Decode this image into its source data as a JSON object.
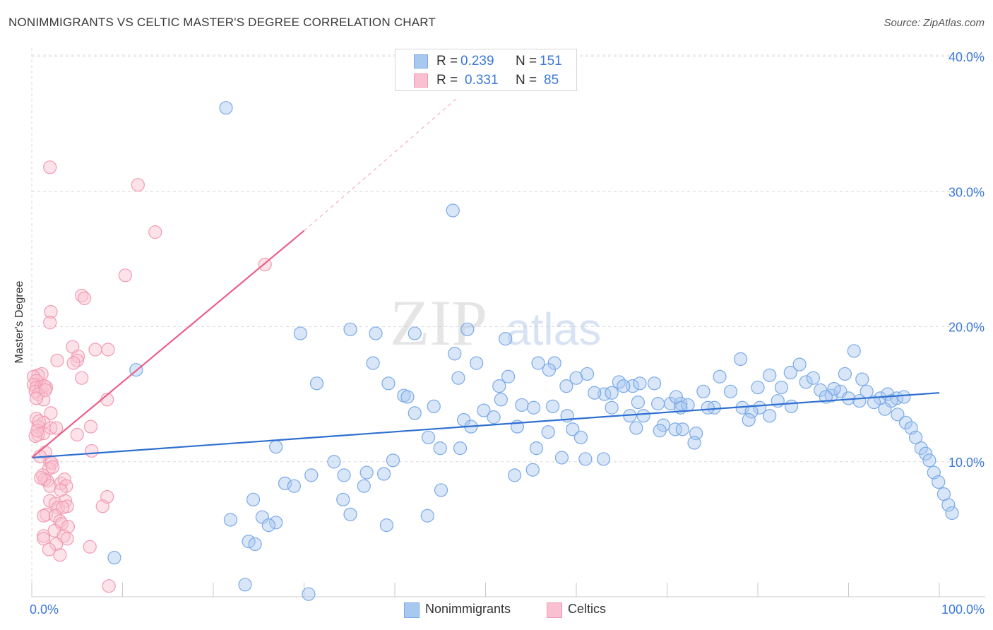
{
  "title": "NONIMMIGRANTS VS CELTIC MASTER'S DEGREE CORRELATION CHART",
  "source": "Source: ZipAtlas.com",
  "watermark": {
    "zip": "ZIP",
    "atlas": "atlas"
  },
  "colors": {
    "blue": "#7aaae8",
    "blue_fill": "#a8c8f0",
    "blue_line": "#2f6fd0",
    "pink": "#f29ab3",
    "pink_fill": "#f8c0d0",
    "pink_line": "#e8608a",
    "axis_text": "#3c78d8",
    "grid": "#dcdcdc"
  },
  "legend": {
    "rows": [
      {
        "r_label": "R =",
        "r_value": "0.239",
        "n_label": "N =",
        "n_value": "151"
      },
      {
        "r_label": "R =",
        "r_value": "0.331",
        "n_label": "N =",
        "n_value": "85"
      }
    ],
    "series": [
      "Nonimmigrants",
      "Celtics"
    ]
  },
  "chart_data": {
    "type": "scatter",
    "title": "NONIMMIGRANTS VS CELTIC MASTER'S DEGREE CORRELATION CHART",
    "xlabel": "",
    "ylabel": "Master's Degree",
    "xlim": [
      0,
      100
    ],
    "ylim": [
      0,
      40
    ],
    "x_tick_labels": [
      "0.0%",
      "100.0%"
    ],
    "y_ticks": [
      10,
      20,
      30,
      40
    ],
    "y_tick_labels": [
      "10.0%",
      "20.0%",
      "30.0%",
      "40.0%"
    ],
    "grid": true,
    "series": [
      {
        "name": "Nonimmigrants",
        "R": 0.239,
        "N": 151,
        "trend": {
          "x": [
            0,
            100
          ],
          "y": [
            10.3,
            15.1
          ],
          "dashed_extension": false
        },
        "points": [
          [
            21.4,
            36.2
          ],
          [
            46.4,
            28.6
          ],
          [
            11.5,
            16.8
          ],
          [
            29.6,
            19.5
          ],
          [
            35.1,
            19.8
          ],
          [
            37.9,
            19.5
          ],
          [
            42.2,
            19.5
          ],
          [
            48.0,
            19.8
          ],
          [
            52.2,
            19.1
          ],
          [
            46.6,
            18.0
          ],
          [
            37.6,
            17.3
          ],
          [
            49.0,
            17.3
          ],
          [
            55.8,
            17.3
          ],
          [
            57.6,
            17.3
          ],
          [
            31.4,
            15.8
          ],
          [
            39.3,
            15.8
          ],
          [
            47.0,
            16.2
          ],
          [
            51.5,
            15.6
          ],
          [
            60.0,
            16.2
          ],
          [
            63.1,
            15.0
          ],
          [
            63.9,
            15.1
          ],
          [
            64.7,
            15.9
          ],
          [
            66.2,
            15.6
          ],
          [
            67.0,
            15.8
          ],
          [
            70.4,
            14.3
          ],
          [
            71.5,
            14.3
          ],
          [
            72.3,
            14.2
          ],
          [
            75.2,
            14.0
          ],
          [
            80.2,
            14.0
          ],
          [
            83.7,
            14.1
          ],
          [
            41.0,
            14.9
          ],
          [
            41.4,
            14.8
          ],
          [
            44.3,
            14.1
          ],
          [
            51.7,
            14.6
          ],
          [
            54.0,
            14.2
          ],
          [
            57.4,
            14.1
          ],
          [
            55.3,
            14.0
          ],
          [
            63.9,
            14.0
          ],
          [
            66.8,
            14.4
          ],
          [
            69.0,
            14.3
          ],
          [
            71.5,
            14.0
          ],
          [
            74.5,
            14.0
          ],
          [
            78.3,
            14.0
          ],
          [
            79.3,
            13.7
          ],
          [
            42.2,
            13.6
          ],
          [
            47.6,
            13.1
          ],
          [
            49.8,
            13.8
          ],
          [
            50.9,
            13.3
          ],
          [
            53.5,
            12.6
          ],
          [
            59.0,
            13.4
          ],
          [
            65.9,
            13.4
          ],
          [
            67.4,
            13.4
          ],
          [
            69.6,
            12.7
          ],
          [
            70.9,
            12.4
          ],
          [
            71.7,
            12.4
          ],
          [
            73.2,
            12.1
          ],
          [
            79.0,
            13.1
          ],
          [
            81.3,
            13.4
          ],
          [
            43.7,
            11.8
          ],
          [
            48.4,
            12.6
          ],
          [
            56.9,
            12.2
          ],
          [
            59.6,
            12.4
          ],
          [
            60.5,
            11.8
          ],
          [
            66.6,
            12.5
          ],
          [
            69.2,
            12.3
          ],
          [
            73.0,
            11.4
          ],
          [
            26.9,
            11.1
          ],
          [
            33.3,
            10.0
          ],
          [
            39.8,
            10.1
          ],
          [
            45.0,
            11.0
          ],
          [
            47.2,
            11.0
          ],
          [
            55.6,
            11.0
          ],
          [
            58.4,
            10.3
          ],
          [
            61.0,
            10.2
          ],
          [
            63.0,
            10.2
          ],
          [
            27.9,
            8.4
          ],
          [
            30.8,
            9.0
          ],
          [
            34.4,
            9.0
          ],
          [
            36.9,
            9.2
          ],
          [
            38.8,
            9.1
          ],
          [
            53.2,
            9.0
          ],
          [
            55.2,
            9.4
          ],
          [
            28.9,
            8.2
          ],
          [
            34.3,
            7.2
          ],
          [
            36.6,
            8.2
          ],
          [
            45.1,
            7.9
          ],
          [
            24.4,
            7.2
          ],
          [
            26.9,
            5.5
          ],
          [
            21.9,
            5.7
          ],
          [
            25.4,
            5.9
          ],
          [
            26.1,
            5.3
          ],
          [
            35.1,
            6.1
          ],
          [
            39.1,
            5.3
          ],
          [
            43.6,
            6.0
          ],
          [
            23.9,
            4.1
          ],
          [
            24.6,
            3.9
          ],
          [
            9.1,
            2.9
          ],
          [
            23.5,
            0.9
          ],
          [
            30.5,
            0.2
          ],
          [
            71.0,
            14.8
          ],
          [
            77.0,
            15.2
          ],
          [
            82.2,
            14.5
          ],
          [
            86.9,
            15.3
          ],
          [
            88.1,
            14.9
          ],
          [
            89.1,
            15.2
          ],
          [
            90.0,
            14.7
          ],
          [
            91.2,
            14.5
          ],
          [
            92.0,
            15.2
          ],
          [
            93.5,
            14.7
          ],
          [
            94.3,
            15.0
          ],
          [
            95.3,
            14.7
          ],
          [
            96.1,
            14.8
          ],
          [
            75.8,
            16.3
          ],
          [
            78.1,
            17.6
          ],
          [
            80.0,
            15.5
          ],
          [
            81.3,
            16.4
          ],
          [
            82.6,
            15.5
          ],
          [
            83.6,
            16.6
          ],
          [
            85.3,
            15.9
          ],
          [
            86.1,
            16.2
          ],
          [
            88.4,
            15.4
          ],
          [
            89.6,
            16.5
          ],
          [
            91.5,
            16.1
          ],
          [
            84.6,
            17.2
          ],
          [
            90.6,
            18.2
          ],
          [
            94.7,
            14.5
          ],
          [
            95.4,
            13.5
          ],
          [
            96.3,
            12.9
          ],
          [
            96.9,
            12.5
          ],
          [
            97.4,
            11.8
          ],
          [
            98.0,
            11.0
          ],
          [
            98.5,
            10.6
          ],
          [
            98.9,
            10.1
          ],
          [
            99.4,
            9.2
          ],
          [
            99.9,
            8.5
          ],
          [
            100.5,
            7.6
          ],
          [
            101.0,
            6.8
          ],
          [
            101.4,
            6.2
          ],
          [
            52.5,
            16.3
          ],
          [
            61.2,
            16.5
          ],
          [
            68.6,
            15.8
          ],
          [
            74.0,
            15.2
          ],
          [
            87.5,
            14.8
          ],
          [
            92.8,
            14.4
          ],
          [
            94.0,
            13.9
          ],
          [
            57.0,
            16.8
          ],
          [
            58.9,
            15.6
          ],
          [
            62.0,
            15.1
          ],
          [
            65.2,
            15.6
          ]
        ]
      },
      {
        "name": "Celtics",
        "R": 0.331,
        "N": 85,
        "trend": {
          "x": [
            0,
            30
          ],
          "y": [
            10.3,
            27.1
          ],
          "dashed_extension": true,
          "dash_to": [
            47,
            37
          ]
        },
        "points": [
          [
            2.0,
            31.8
          ],
          [
            11.7,
            30.5
          ],
          [
            13.6,
            27.0
          ],
          [
            25.7,
            24.6
          ],
          [
            10.3,
            23.8
          ],
          [
            5.5,
            22.3
          ],
          [
            5.8,
            22.1
          ],
          [
            2.1,
            21.1
          ],
          [
            2.0,
            20.3
          ],
          [
            4.5,
            18.5
          ],
          [
            7.0,
            18.3
          ],
          [
            5.1,
            17.8
          ],
          [
            5.0,
            17.5
          ],
          [
            4.6,
            17.3
          ],
          [
            2.8,
            17.5
          ],
          [
            1.1,
            16.5
          ],
          [
            0.7,
            16.4
          ],
          [
            0.2,
            16.3
          ],
          [
            0.5,
            16.0
          ],
          [
            0.2,
            15.7
          ],
          [
            0.5,
            15.5
          ],
          [
            1.0,
            15.5
          ],
          [
            1.4,
            15.6
          ],
          [
            1.6,
            15.5
          ],
          [
            0.4,
            15.2
          ],
          [
            0.7,
            15.0
          ],
          [
            1.3,
            14.6
          ],
          [
            0.5,
            14.7
          ],
          [
            2.1,
            13.6
          ],
          [
            0.5,
            13.2
          ],
          [
            1.3,
            12.9
          ],
          [
            0.7,
            12.6
          ],
          [
            1.3,
            12.1
          ],
          [
            2.1,
            12.5
          ],
          [
            0.7,
            12.0
          ],
          [
            0.4,
            11.9
          ],
          [
            5.5,
            16.2
          ],
          [
            8.4,
            18.3
          ],
          [
            8.3,
            14.6
          ],
          [
            6.5,
            12.6
          ],
          [
            5.0,
            12.0
          ],
          [
            0.6,
            12.3
          ],
          [
            1.5,
            10.7
          ],
          [
            2.0,
            10.0
          ],
          [
            2.2,
            9.9
          ],
          [
            1.9,
            9.5
          ],
          [
            2.3,
            9.6
          ],
          [
            6.6,
            10.8
          ],
          [
            1.2,
            9.0
          ],
          [
            1.7,
            8.6
          ],
          [
            1.4,
            8.7
          ],
          [
            2.0,
            8.2
          ],
          [
            3.2,
            8.4
          ],
          [
            3.6,
            8.7
          ],
          [
            3.8,
            8.2
          ],
          [
            3.2,
            7.9
          ],
          [
            2.0,
            7.1
          ],
          [
            2.6,
            6.9
          ],
          [
            2.9,
            6.6
          ],
          [
            3.7,
            7.1
          ],
          [
            3.9,
            6.7
          ],
          [
            3.4,
            6.6
          ],
          [
            1.6,
            6.1
          ],
          [
            1.3,
            6.0
          ],
          [
            2.6,
            6.0
          ],
          [
            3.1,
            5.6
          ],
          [
            3.3,
            5.4
          ],
          [
            4.0,
            5.2
          ],
          [
            2.5,
            4.9
          ],
          [
            1.3,
            4.5
          ],
          [
            1.3,
            4.3
          ],
          [
            3.5,
            4.5
          ],
          [
            3.9,
            4.3
          ],
          [
            2.7,
            3.9
          ],
          [
            1.9,
            3.5
          ],
          [
            6.4,
            3.7
          ],
          [
            3.1,
            3.1
          ],
          [
            8.3,
            7.4
          ],
          [
            7.8,
            6.7
          ],
          [
            8.5,
            0.8
          ],
          [
            0.9,
            10.4
          ],
          [
            1.0,
            8.8
          ],
          [
            2.7,
            12.5
          ],
          [
            0.8,
            13.0
          ],
          [
            1.5,
            15.3
          ]
        ]
      }
    ]
  }
}
